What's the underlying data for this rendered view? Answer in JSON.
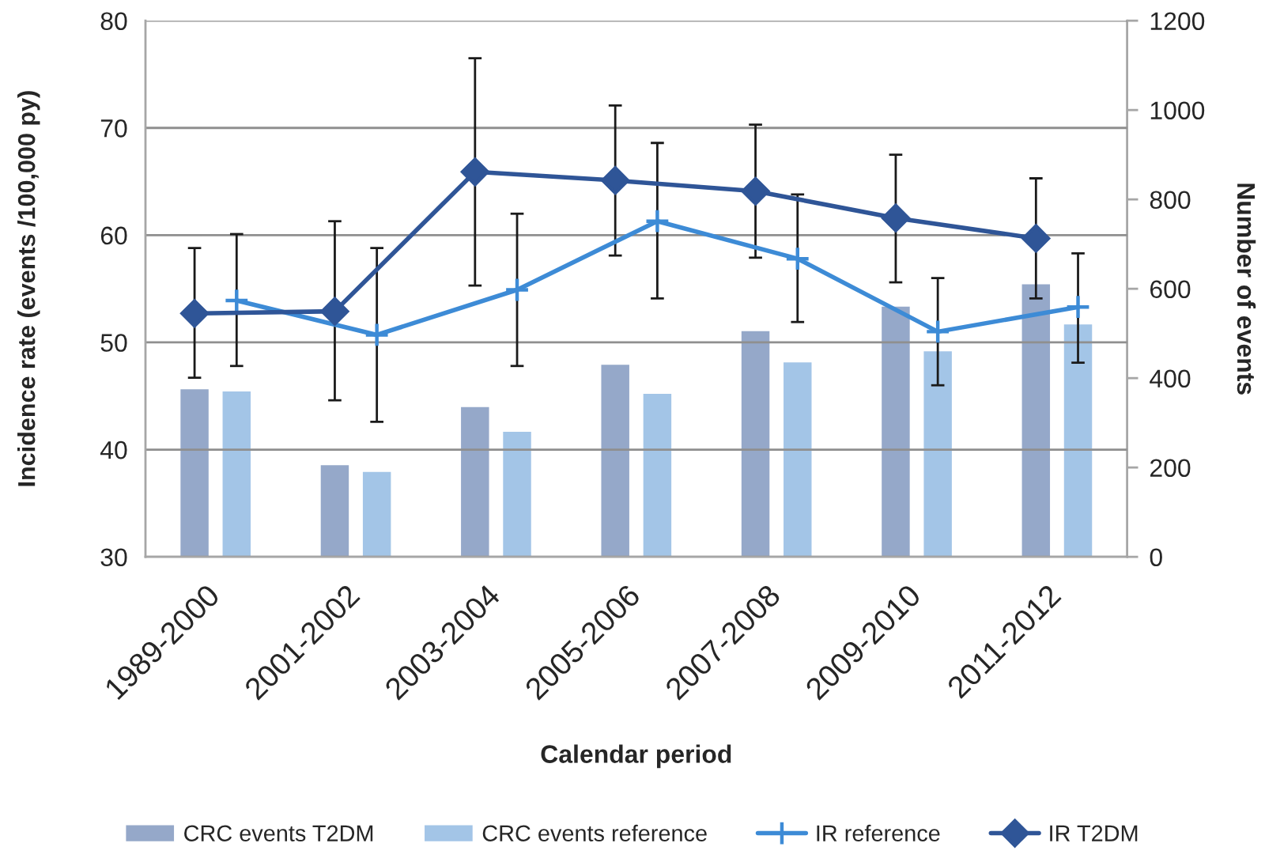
{
  "chart_data": {
    "type": "bar",
    "xlabel": "Calendar period",
    "ylabel": "Incidence rate (events /100,000 py)",
    "y2label": "Number of events",
    "categories": [
      "1989-2000",
      "2001-2002",
      "2003-2004",
      "2005-2006",
      "2007-2008",
      "2009-2010",
      "2011-2012"
    ],
    "series": [
      {
        "name": "CRC events T2DM",
        "axis": "y2",
        "color": "#95a8c9",
        "values": [
          375,
          205,
          335,
          430,
          505,
          560,
          610
        ]
      },
      {
        "name": "CRC events reference",
        "axis": "y2",
        "color": "#a3c5e7",
        "values": [
          370,
          190,
          280,
          365,
          435,
          460,
          520
        ]
      },
      {
        "name": "IR reference",
        "type": "line",
        "color": "#3d8bd6",
        "marker": "cross",
        "values": [
          53.9,
          50.7,
          54.9,
          61.3,
          57.8,
          51.0,
          53.3
        ],
        "errors": [
          [
            47.8,
            60.1
          ],
          [
            42.6,
            58.8
          ],
          [
            47.8,
            62.0
          ],
          [
            54.1,
            68.6
          ],
          [
            51.9,
            63.8
          ],
          [
            46.0,
            56.0
          ],
          [
            48.1,
            58.3
          ]
        ]
      },
      {
        "name": "IR T2DM",
        "type": "line",
        "color": "#2f5597",
        "marker": "diamond",
        "values": [
          52.7,
          52.9,
          65.9,
          65.1,
          64.1,
          61.6,
          59.7
        ],
        "errors": [
          [
            46.7,
            58.8
          ],
          [
            44.6,
            61.3
          ],
          [
            55.3,
            76.5
          ],
          [
            58.1,
            72.1
          ],
          [
            57.9,
            70.3
          ],
          [
            55.6,
            67.5
          ],
          [
            54.1,
            65.3
          ]
        ]
      }
    ],
    "ylim": [
      30,
      80
    ],
    "yticks": [
      30,
      40,
      50,
      60,
      70,
      80
    ],
    "y2lim": [
      0,
      1200
    ],
    "y2ticks": [
      0,
      200,
      400,
      600,
      800,
      1000,
      1200
    ],
    "grid": "y",
    "legend": "bottom"
  }
}
